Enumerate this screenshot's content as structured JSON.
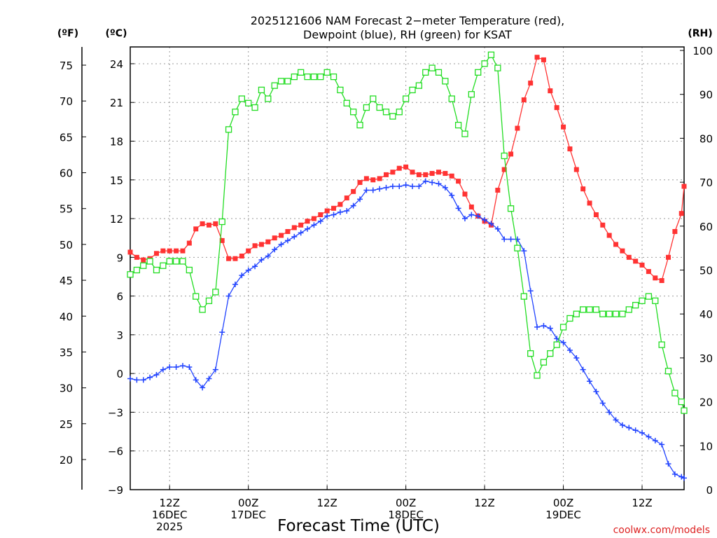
{
  "chart_data": {
    "type": "line",
    "title": "2025121606 NAM Forecast 2−meter Temperature (red),",
    "subtitle": "Dewpoint (blue), RH (green) for KSAT",
    "xlabel": "Forecast Time (UTC)",
    "credit": "coolwx.com/models",
    "left_axis_f_label": "(ºF)",
    "left_axis_c_label": "(ºC)",
    "right_axis_label": "(RH)",
    "f_ticks": [
      "75",
      "70",
      "65",
      "60",
      "55",
      "50",
      "45",
      "40",
      "35",
      "30",
      "25",
      "20"
    ],
    "c_ticks": [
      "24",
      "21",
      "18",
      "15",
      "12",
      "9",
      "6",
      "3",
      "0",
      "−3",
      "−6",
      "−9"
    ],
    "rh_ticks": [
      "100",
      "90",
      "80",
      "70",
      "60",
      "50",
      "40",
      "30",
      "20",
      "10",
      "0"
    ],
    "x_ticks": [
      {
        "hour": 12,
        "lines": [
          "12Z",
          "16DEC",
          "2025"
        ]
      },
      {
        "hour": 24,
        "lines": [
          "00Z",
          "17DEC"
        ]
      },
      {
        "hour": 36,
        "lines": [
          "12Z"
        ]
      },
      {
        "hour": 48,
        "lines": [
          "00Z",
          "18DEC"
        ]
      },
      {
        "hour": 60,
        "lines": [
          "12Z"
        ]
      },
      {
        "hour": 72,
        "lines": [
          "00Z",
          "19DEC"
        ]
      },
      {
        "hour": 84,
        "lines": [
          "12Z"
        ]
      }
    ],
    "xlim_hours_utc_from_16DEC_00Z": [
      6,
      90
    ],
    "ylim_celsius": [
      -9,
      25.3
    ],
    "ylim_rh": [
      0,
      100
    ],
    "grid": true,
    "colors": {
      "temperature": "#ff3333",
      "dewpoint": "#2244ff",
      "rh": "#22dd22"
    },
    "series": [
      {
        "name": "Temperature",
        "unit": "C",
        "color": "#ff3333",
        "marker": "filled-square",
        "points": [
          [
            6,
            9.4
          ],
          [
            7,
            9.0
          ],
          [
            8,
            8.8
          ],
          [
            9,
            8.9
          ],
          [
            10,
            9.3
          ],
          [
            11,
            9.5
          ],
          [
            12,
            9.5
          ],
          [
            13,
            9.5
          ],
          [
            14,
            9.5
          ],
          [
            15,
            10.1
          ],
          [
            16,
            11.2
          ],
          [
            17,
            11.6
          ],
          [
            18,
            11.5
          ],
          [
            19,
            11.6
          ],
          [
            20,
            10.3
          ],
          [
            21,
            8.9
          ],
          [
            22,
            8.9
          ],
          [
            23,
            9.1
          ],
          [
            24,
            9.5
          ],
          [
            25,
            9.9
          ],
          [
            26,
            10.0
          ],
          [
            27,
            10.2
          ],
          [
            28,
            10.5
          ],
          [
            29,
            10.7
          ],
          [
            30,
            11.0
          ],
          [
            31,
            11.3
          ],
          [
            32,
            11.5
          ],
          [
            33,
            11.8
          ],
          [
            34,
            12.0
          ],
          [
            35,
            12.3
          ],
          [
            36,
            12.6
          ],
          [
            37,
            12.8
          ],
          [
            38,
            13.1
          ],
          [
            39,
            13.6
          ],
          [
            40,
            14.1
          ],
          [
            41,
            14.8
          ],
          [
            42,
            15.1
          ],
          [
            43,
            15.0
          ],
          [
            44,
            15.1
          ],
          [
            45,
            15.4
          ],
          [
            46,
            15.6
          ],
          [
            47,
            15.9
          ],
          [
            48,
            16.0
          ],
          [
            49,
            15.6
          ],
          [
            50,
            15.4
          ],
          [
            51,
            15.4
          ],
          [
            52,
            15.5
          ],
          [
            53,
            15.6
          ],
          [
            54,
            15.5
          ],
          [
            55,
            15.3
          ],
          [
            56,
            14.9
          ],
          [
            57,
            13.9
          ],
          [
            58,
            12.9
          ],
          [
            59,
            12.2
          ],
          [
            60,
            11.8
          ],
          [
            61,
            11.5
          ],
          [
            62,
            14.2
          ],
          [
            63,
            15.8
          ],
          [
            64,
            17.0
          ],
          [
            65,
            19.0
          ],
          [
            66,
            21.2
          ],
          [
            67,
            22.5
          ],
          [
            68,
            24.5
          ],
          [
            69,
            24.3
          ],
          [
            70,
            21.9
          ],
          [
            71,
            20.6
          ],
          [
            72,
            19.1
          ],
          [
            73,
            17.4
          ],
          [
            74,
            15.8
          ],
          [
            75,
            14.3
          ],
          [
            76,
            13.2
          ],
          [
            77,
            12.3
          ],
          [
            78,
            11.5
          ],
          [
            79,
            10.7
          ],
          [
            80,
            10.0
          ],
          [
            81,
            9.5
          ],
          [
            82,
            9.0
          ],
          [
            83,
            8.7
          ],
          [
            84,
            8.4
          ],
          [
            85,
            7.9
          ],
          [
            86,
            7.4
          ],
          [
            87,
            7.2
          ],
          [
            88,
            9.0
          ],
          [
            89,
            11.0
          ],
          [
            90,
            12.4
          ],
          [
            91,
            14.5
          ]
        ]
      },
      {
        "name": "Dewpoint",
        "unit": "C",
        "color": "#2244ff",
        "marker": "plus",
        "points": [
          [
            6,
            -0.4
          ],
          [
            7,
            -0.5
          ],
          [
            8,
            -0.5
          ],
          [
            9,
            -0.3
          ],
          [
            10,
            -0.1
          ],
          [
            11,
            0.3
          ],
          [
            12,
            0.5
          ],
          [
            13,
            0.5
          ],
          [
            14,
            0.6
          ],
          [
            15,
            0.5
          ],
          [
            16,
            -0.5
          ],
          [
            17,
            -1.1
          ],
          [
            18,
            -0.4
          ],
          [
            19,
            0.3
          ],
          [
            20,
            3.2
          ],
          [
            21,
            6.0
          ],
          [
            22,
            6.9
          ],
          [
            23,
            7.6
          ],
          [
            24,
            8.0
          ],
          [
            25,
            8.3
          ],
          [
            26,
            8.8
          ],
          [
            27,
            9.1
          ],
          [
            28,
            9.6
          ],
          [
            29,
            10.0
          ],
          [
            30,
            10.3
          ],
          [
            31,
            10.6
          ],
          [
            32,
            10.9
          ],
          [
            33,
            11.2
          ],
          [
            34,
            11.5
          ],
          [
            35,
            11.8
          ],
          [
            36,
            12.2
          ],
          [
            37,
            12.3
          ],
          [
            38,
            12.5
          ],
          [
            39,
            12.6
          ],
          [
            40,
            13.0
          ],
          [
            41,
            13.5
          ],
          [
            42,
            14.2
          ],
          [
            43,
            14.2
          ],
          [
            44,
            14.3
          ],
          [
            45,
            14.4
          ],
          [
            46,
            14.5
          ],
          [
            47,
            14.5
          ],
          [
            48,
            14.6
          ],
          [
            49,
            14.5
          ],
          [
            50,
            14.5
          ],
          [
            51,
            14.9
          ],
          [
            52,
            14.8
          ],
          [
            53,
            14.7
          ],
          [
            54,
            14.4
          ],
          [
            55,
            13.8
          ],
          [
            56,
            12.8
          ],
          [
            57,
            12.0
          ],
          [
            58,
            12.3
          ],
          [
            59,
            12.2
          ],
          [
            60,
            11.9
          ],
          [
            61,
            11.6
          ],
          [
            62,
            11.2
          ],
          [
            63,
            10.4
          ],
          [
            64,
            10.4
          ],
          [
            65,
            10.4
          ],
          [
            66,
            9.5
          ],
          [
            67,
            6.4
          ],
          [
            68,
            3.6
          ],
          [
            69,
            3.7
          ],
          [
            70,
            3.5
          ],
          [
            71,
            2.7
          ],
          [
            72,
            2.4
          ],
          [
            73,
            1.8
          ],
          [
            74,
            1.2
          ],
          [
            75,
            0.3
          ],
          [
            76,
            -0.6
          ],
          [
            77,
            -1.4
          ],
          [
            78,
            -2.3
          ],
          [
            79,
            -3.0
          ],
          [
            80,
            -3.6
          ],
          [
            81,
            -4.0
          ],
          [
            82,
            -4.2
          ],
          [
            83,
            -4.4
          ],
          [
            84,
            -4.6
          ],
          [
            85,
            -4.9
          ],
          [
            86,
            -5.2
          ],
          [
            87,
            -5.5
          ],
          [
            88,
            -7.0
          ],
          [
            89,
            -7.8
          ],
          [
            90,
            -8.0
          ],
          [
            91,
            -8.1
          ]
        ]
      },
      {
        "name": "RH",
        "unit": "%",
        "color": "#22dd22",
        "marker": "open-square",
        "points": [
          [
            6,
            49
          ],
          [
            7,
            50
          ],
          [
            8,
            51
          ],
          [
            9,
            52
          ],
          [
            10,
            50
          ],
          [
            11,
            51
          ],
          [
            12,
            52
          ],
          [
            13,
            52
          ],
          [
            14,
            52
          ],
          [
            15,
            50
          ],
          [
            16,
            44
          ],
          [
            17,
            41
          ],
          [
            18,
            43
          ],
          [
            19,
            45
          ],
          [
            20,
            61
          ],
          [
            21,
            82
          ],
          [
            22,
            86
          ],
          [
            23,
            89
          ],
          [
            24,
            88
          ],
          [
            25,
            87
          ],
          [
            26,
            91
          ],
          [
            27,
            89
          ],
          [
            28,
            92
          ],
          [
            29,
            93
          ],
          [
            30,
            93
          ],
          [
            31,
            94
          ],
          [
            32,
            95
          ],
          [
            33,
            94
          ],
          [
            34,
            94
          ],
          [
            35,
            94
          ],
          [
            36,
            95
          ],
          [
            37,
            94
          ],
          [
            38,
            91
          ],
          [
            39,
            88
          ],
          [
            40,
            86
          ],
          [
            41,
            83
          ],
          [
            42,
            87
          ],
          [
            43,
            89
          ],
          [
            44,
            87
          ],
          [
            45,
            86
          ],
          [
            46,
            85
          ],
          [
            47,
            86
          ],
          [
            48,
            89
          ],
          [
            49,
            91
          ],
          [
            50,
            92
          ],
          [
            51,
            95
          ],
          [
            52,
            96
          ],
          [
            53,
            95
          ],
          [
            54,
            93
          ],
          [
            55,
            89
          ],
          [
            56,
            83
          ],
          [
            57,
            81
          ],
          [
            58,
            90
          ],
          [
            59,
            95
          ],
          [
            60,
            97
          ],
          [
            61,
            99
          ],
          [
            62,
            96
          ],
          [
            63,
            76
          ],
          [
            64,
            64
          ],
          [
            65,
            55
          ],
          [
            66,
            44
          ],
          [
            67,
            31
          ],
          [
            68,
            26
          ],
          [
            69,
            29
          ],
          [
            70,
            31
          ],
          [
            71,
            33
          ],
          [
            72,
            37
          ],
          [
            73,
            39
          ],
          [
            74,
            40
          ],
          [
            75,
            41
          ],
          [
            76,
            41
          ],
          [
            77,
            41
          ],
          [
            78,
            40
          ],
          [
            79,
            40
          ],
          [
            80,
            40
          ],
          [
            81,
            40
          ],
          [
            82,
            41
          ],
          [
            83,
            42
          ],
          [
            84,
            43
          ],
          [
            85,
            44
          ],
          [
            86,
            43
          ],
          [
            87,
            33
          ],
          [
            88,
            27
          ],
          [
            89,
            22
          ],
          [
            90,
            20
          ],
          [
            91,
            18
          ]
        ]
      }
    ]
  }
}
